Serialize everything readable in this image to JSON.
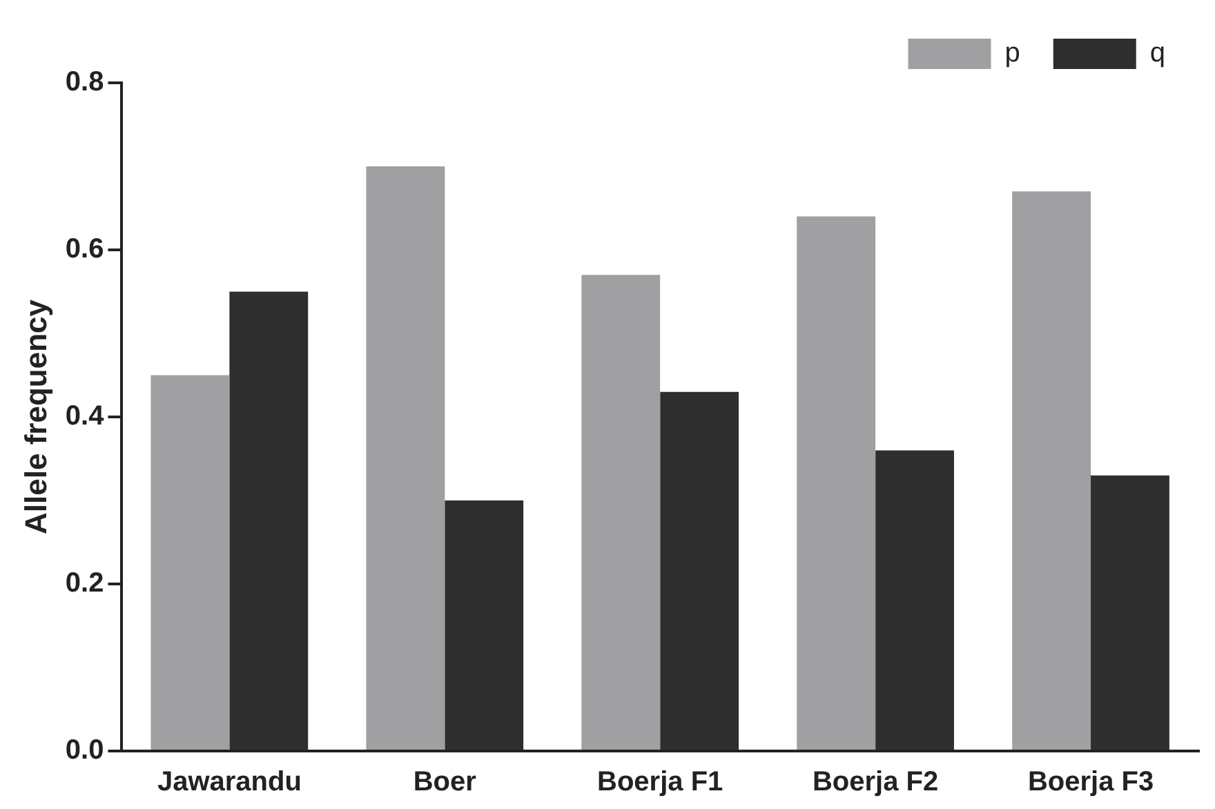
{
  "chart_data": {
    "type": "bar",
    "ylabel": "Allele frequency",
    "categories": [
      "Jawarandu",
      "Boer",
      "Boerja F1",
      "Boerja F2",
      "Boerja F3"
    ],
    "series": [
      {
        "name": "p",
        "color": "#a0a0a2",
        "values": [
          0.45,
          0.7,
          0.57,
          0.64,
          0.67
        ]
      },
      {
        "name": "q",
        "color": "#2e2e2e",
        "values": [
          0.55,
          0.3,
          0.43,
          0.36,
          0.33
        ]
      }
    ],
    "ylim": [
      0,
      0.8
    ],
    "yticks": [
      {
        "value": 0,
        "label": "0.0"
      },
      0.2,
      0.4,
      0.6,
      0.8
    ],
    "grid": false,
    "legend": "top right"
  }
}
